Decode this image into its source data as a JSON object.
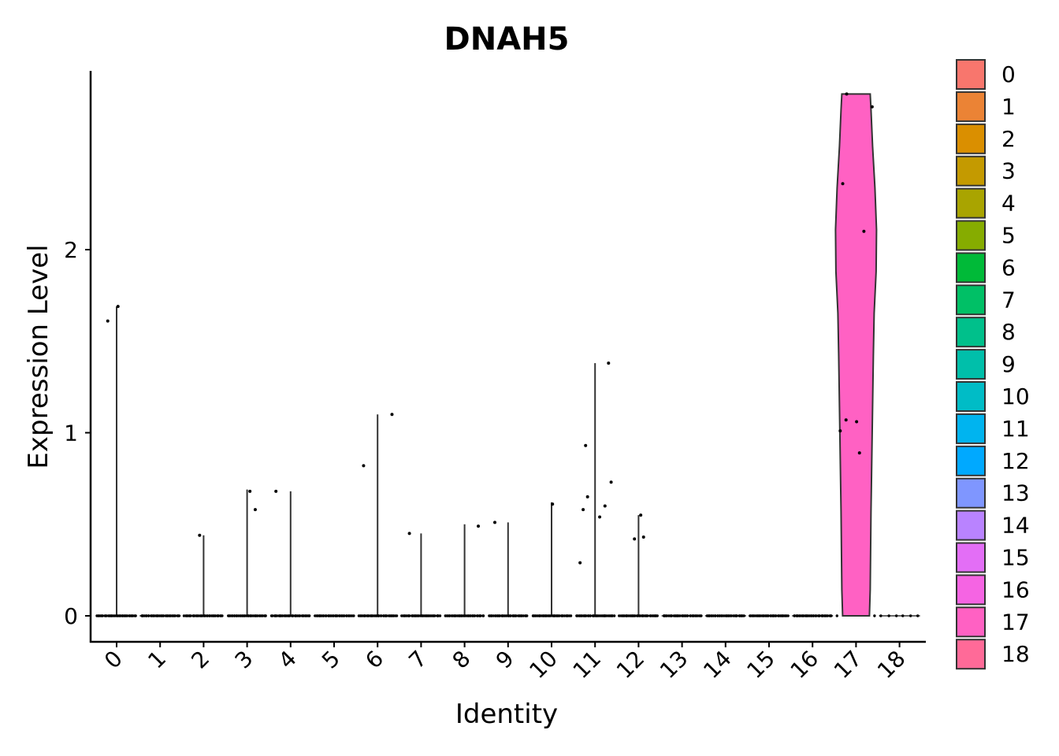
{
  "chart_data": {
    "type": "violin",
    "title": "DNAH5",
    "xlabel": "Identity",
    "ylabel": "Expression Level",
    "categories": [
      "0",
      "1",
      "2",
      "3",
      "4",
      "5",
      "6",
      "7",
      "8",
      "9",
      "10",
      "11",
      "12",
      "13",
      "14",
      "15",
      "16",
      "17",
      "18"
    ],
    "ylim": [
      -0.14,
      2.95
    ],
    "yticks": [
      0,
      1,
      2
    ],
    "max_values": [
      1.69,
      0,
      0.44,
      0.69,
      0.68,
      0,
      1.1,
      0.45,
      0.5,
      0.51,
      0.62,
      1.38,
      0.55,
      0,
      0,
      0,
      0,
      2.85,
      0
    ],
    "outlier_points": [
      {
        "cluster": "0",
        "values": [
          1.69,
          1.61
        ]
      },
      {
        "cluster": "2",
        "values": [
          0.44
        ]
      },
      {
        "cluster": "3",
        "values": [
          0.58,
          0.68
        ]
      },
      {
        "cluster": "4",
        "values": [
          0.68
        ]
      },
      {
        "cluster": "6",
        "values": [
          1.1,
          0.82
        ]
      },
      {
        "cluster": "7",
        "values": [
          0.45
        ]
      },
      {
        "cluster": "8",
        "values": [
          0.49
        ]
      },
      {
        "cluster": "9",
        "values": [
          0.51
        ]
      },
      {
        "cluster": "10",
        "values": [
          0.61
        ]
      },
      {
        "cluster": "11",
        "values": [
          1.38,
          0.93,
          0.73,
          0.65,
          0.6,
          0.58,
          0.54,
          0.29
        ]
      },
      {
        "cluster": "12",
        "values": [
          0.55,
          0.43,
          0.42
        ]
      },
      {
        "cluster": "17",
        "values": [
          2.85,
          2.78,
          2.36,
          2.1,
          1.07,
          1.06,
          1.01,
          0.89
        ]
      }
    ],
    "colors": [
      "#F8766D",
      "#EB8335",
      "#DA8F00",
      "#C49A00",
      "#A9A400",
      "#86AC00",
      "#00BA38",
      "#00C066",
      "#00C08B",
      "#00BFAA",
      "#00BCC6",
      "#00B4EF",
      "#00A9FF",
      "#7F96FF",
      "#B983FF",
      "#E36EF6",
      "#F564E3",
      "#FF61C3",
      "#FF6A98"
    ],
    "legend": {
      "position": "right",
      "labels": [
        "0",
        "1",
        "2",
        "3",
        "4",
        "5",
        "6",
        "7",
        "8",
        "9",
        "10",
        "11",
        "12",
        "13",
        "14",
        "15",
        "16",
        "17",
        "18"
      ]
    }
  }
}
